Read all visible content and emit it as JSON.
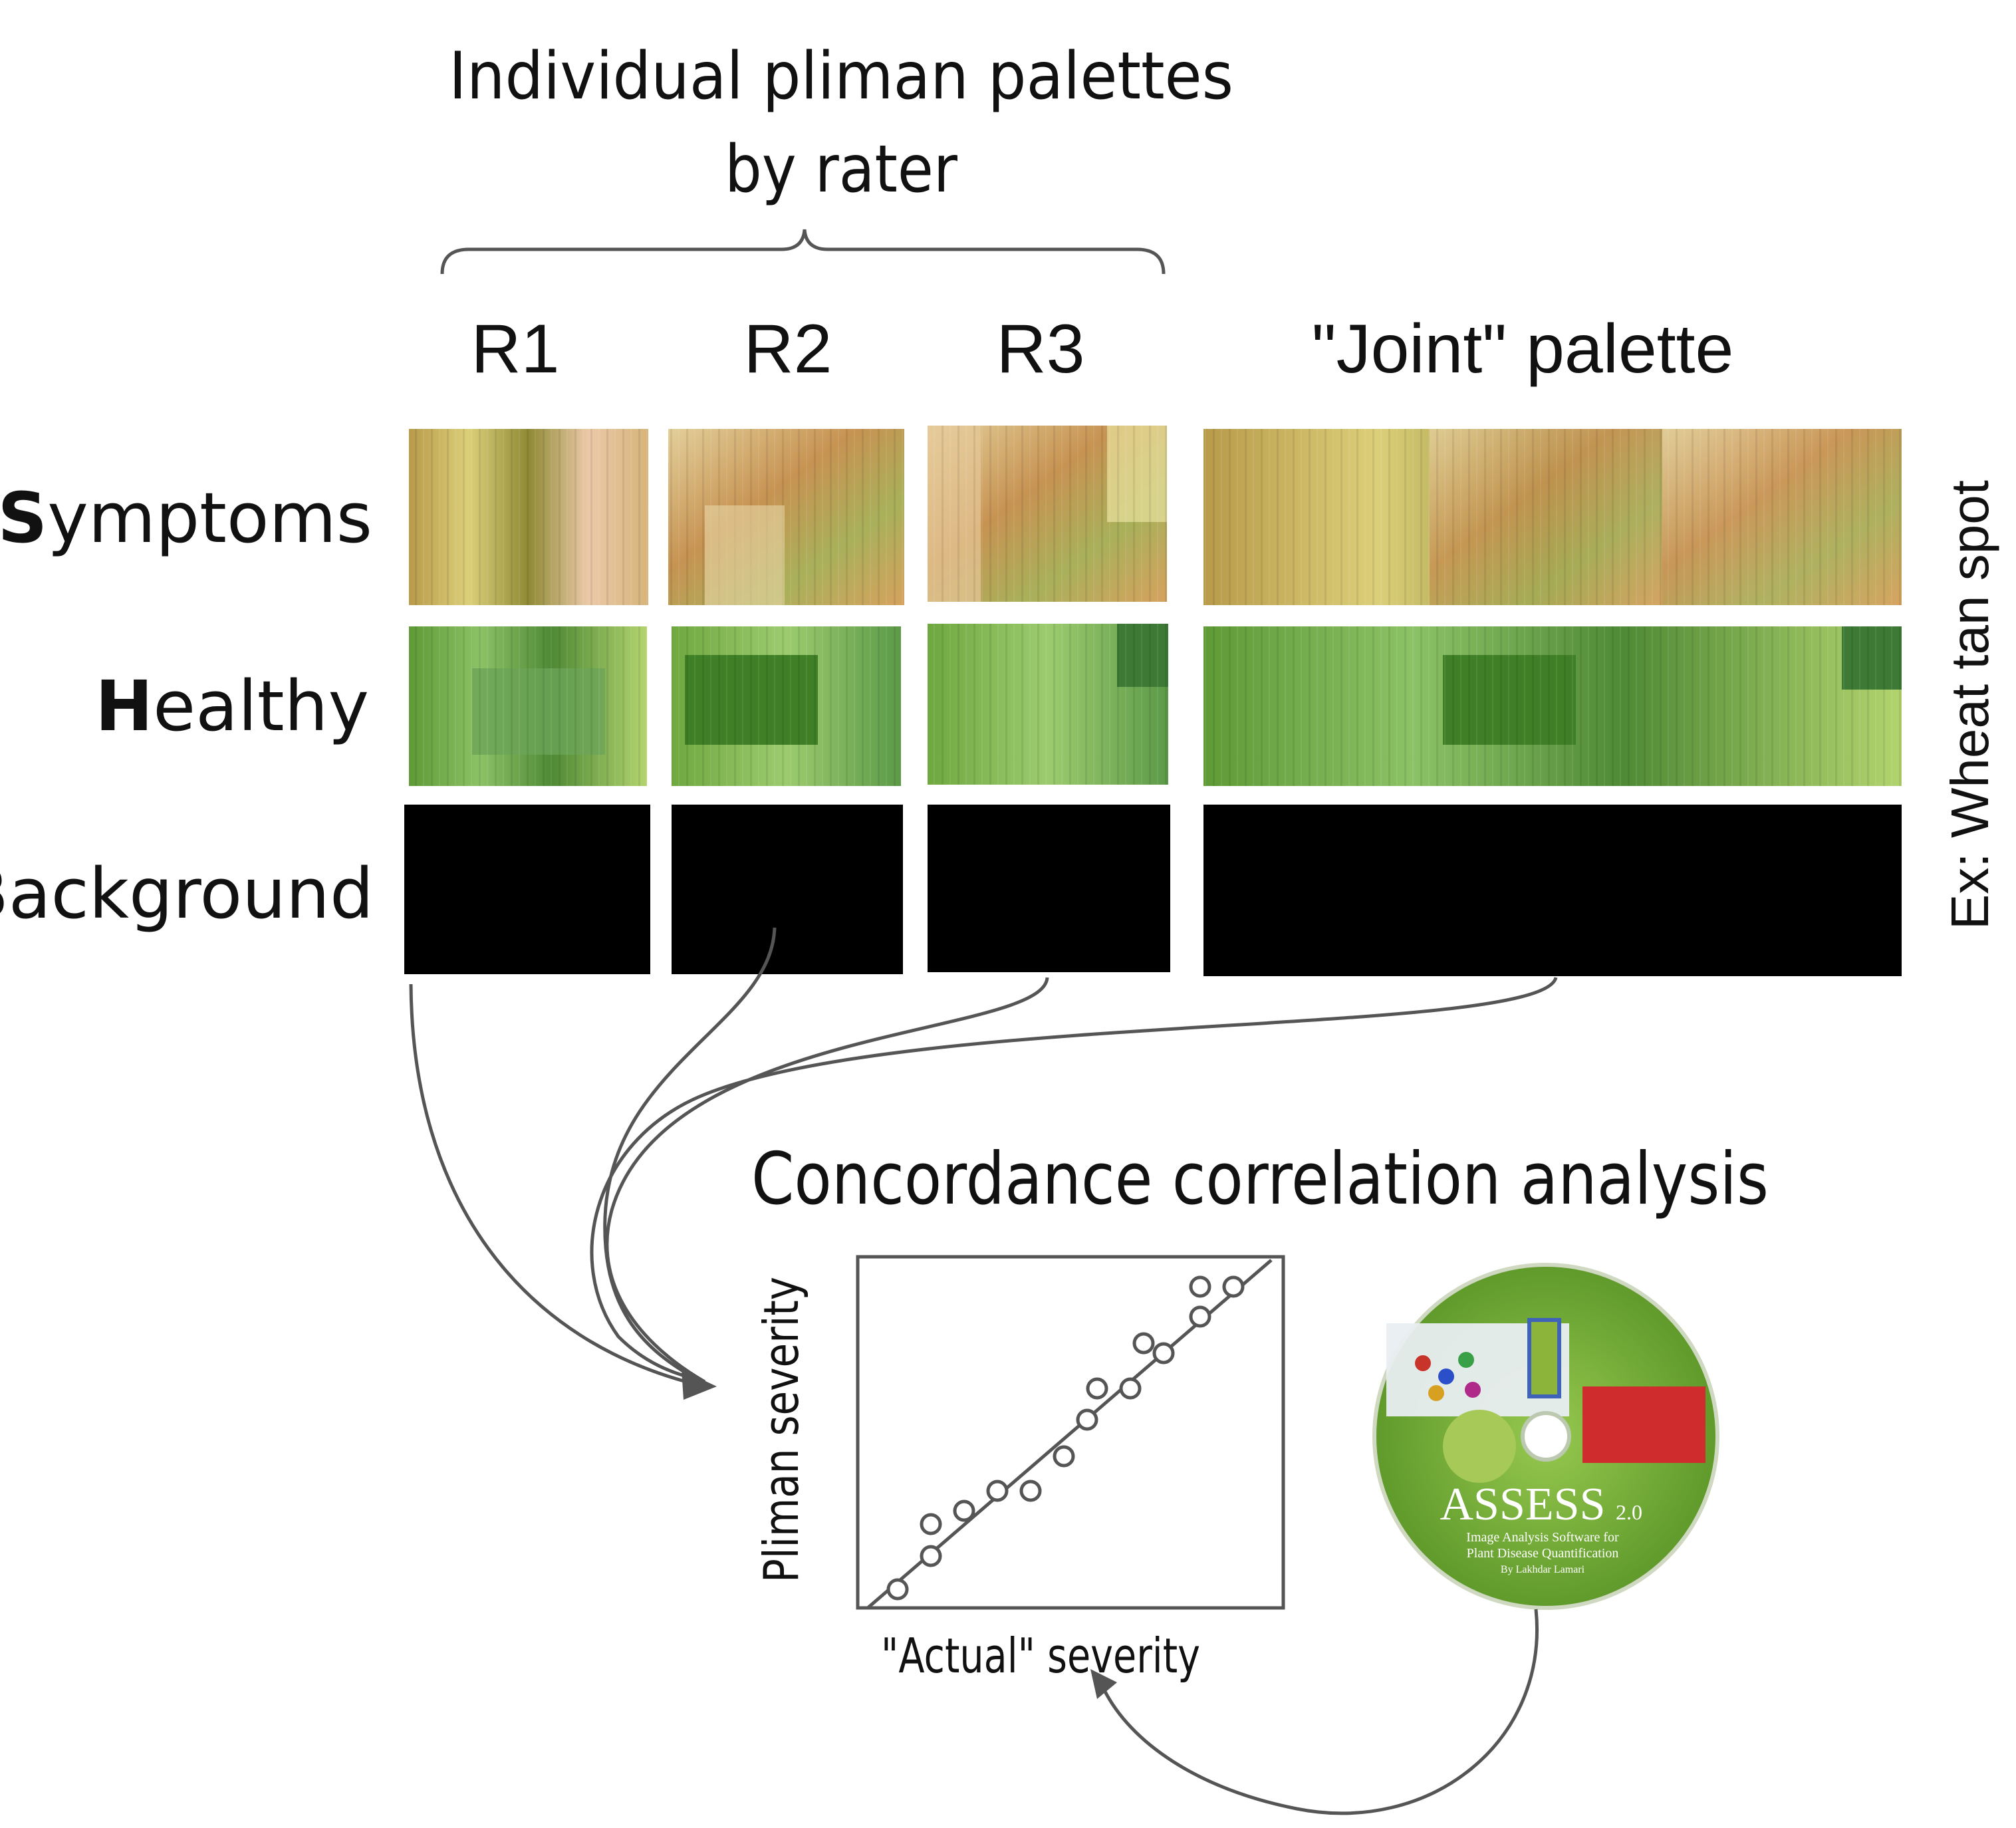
{
  "header": {
    "title_line1": "Individual pliman palettes",
    "title_line2": "by rater"
  },
  "columns": {
    "r1": "R1",
    "r2": "R2",
    "r3": "R3",
    "joint": "\"Joint\" palette"
  },
  "rows": {
    "symptoms": {
      "initial": "S",
      "rest": "ymptoms"
    },
    "healthy": {
      "initial": "H",
      "rest": "ealthy"
    },
    "background": {
      "initial": "B",
      "rest": "ackground"
    }
  },
  "side_note": "Ex: Wheat tan spot",
  "analysis": {
    "title": "Concordance correlation analysis",
    "ylabel": "Pliman severity",
    "xlabel": "\"Actual\" severity"
  },
  "software_disc": {
    "name": "ASSESS",
    "version": "2.0",
    "subtitle_line1": "Image Analysis Software for",
    "subtitle_line2": "Plant Disease Quantification",
    "author": "By Lakhdar Lamari"
  },
  "colors": {
    "stroke": "#555555",
    "symptoms": [
      "#c9a64a",
      "#d8c27a",
      "#9c8a3c",
      "#e9c9a6",
      "#c7874a"
    ],
    "healthy": [
      "#5d9b3c",
      "#7dbb55",
      "#3f7a2a",
      "#9dc96a"
    ],
    "background": "#000000",
    "disc_green": "#7dbb3a"
  }
}
